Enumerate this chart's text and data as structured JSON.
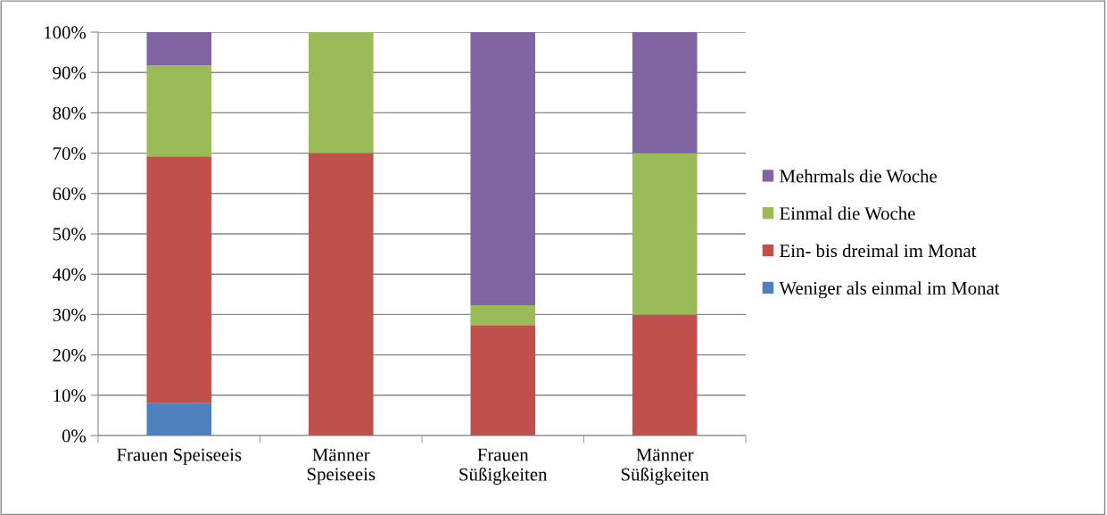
{
  "chart_data": {
    "type": "bar",
    "stacked": true,
    "categories": [
      "Frauen Speiseeis",
      "Männer\nSpeiseeis",
      "Frauen\nSüßigkeiten",
      "Männer\nSüßigkeiten"
    ],
    "series": [
      {
        "name": "Weniger als einmal im Monat",
        "color": "#4f81bd",
        "values": [
          8,
          0,
          0,
          0
        ]
      },
      {
        "name": "Ein- bis dreimal im Monat",
        "color": "#c0504d",
        "values": [
          61.2,
          70,
          27.4,
          30
        ]
      },
      {
        "name": "Einmal die Woche",
        "color": "#9bbb59",
        "values": [
          22.6,
          30,
          4.9,
          40
        ]
      },
      {
        "name": "Mehrmals die Woche",
        "color": "#8064a2",
        "values": [
          8.2,
          0,
          67.7,
          30
        ]
      }
    ],
    "ylim": [
      0,
      100
    ],
    "yticks": [
      {
        "value": 0,
        "label": "0%"
      },
      {
        "value": 10,
        "label": "10%"
      },
      {
        "value": 20,
        "label": "20%"
      },
      {
        "value": 30,
        "label": "30%"
      },
      {
        "value": 40,
        "label": "40%"
      },
      {
        "value": 50,
        "label": "50%"
      },
      {
        "value": 60,
        "label": "60%"
      },
      {
        "value": 70,
        "label": "70%"
      },
      {
        "value": 80,
        "label": "80%"
      },
      {
        "value": 90,
        "label": "90%"
      },
      {
        "value": 100,
        "label": "100%"
      }
    ],
    "grid": "y",
    "legend": "right"
  }
}
